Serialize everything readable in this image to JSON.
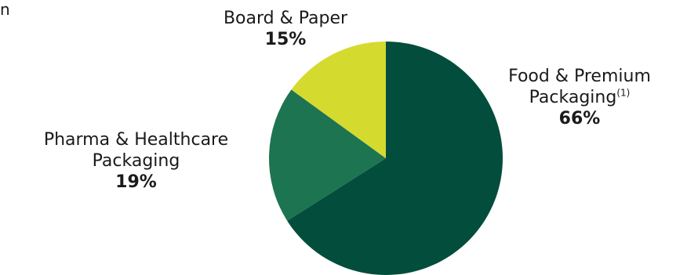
{
  "corner_fragment": "n",
  "colors": {
    "food": "#034d3c",
    "pharma": "#1d7450",
    "board": "#d5da2f"
  },
  "chart_data": {
    "type": "pie",
    "title": "",
    "start_angle_deg": 0,
    "direction": "clockwise",
    "slices": [
      {
        "name_line1": "Food & Premium",
        "name_line2": "Packaging",
        "footnote": "(1)",
        "value": 66,
        "label": "66%",
        "color_key": "food"
      },
      {
        "name_line1": "Pharma & Healthcare",
        "name_line2": "Packaging",
        "footnote": "",
        "value": 19,
        "label": "19%",
        "color_key": "pharma"
      },
      {
        "name_line1": "Board & Paper",
        "name_line2": "",
        "footnote": "",
        "value": 15,
        "label": "15%",
        "color_key": "board"
      }
    ]
  }
}
